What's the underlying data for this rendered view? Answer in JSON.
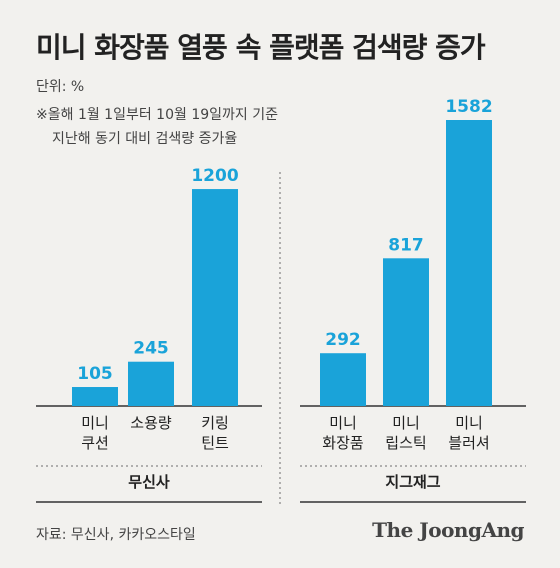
{
  "header": {
    "title": "미니 화장품 열풍 속 플랫폼 검색량 증가",
    "unit": "단위: %",
    "note_line1": "※올해 1월 1일부터 10월 19일까지 기준",
    "note_line2": "지난해 동기 대비 검색량 증가율"
  },
  "chart_data": {
    "type": "bar",
    "groups": [
      {
        "name": "무신사",
        "categories": [
          [
            "미니",
            "쿠션"
          ],
          [
            "소용량"
          ],
          [
            "키링",
            "틴트"
          ]
        ],
        "values": [
          105,
          245,
          1200
        ]
      },
      {
        "name": "지그재그",
        "categories": [
          [
            "미니",
            "화장품"
          ],
          [
            "미니",
            "립스틱"
          ],
          [
            "미니",
            "블러셔"
          ]
        ],
        "values": [
          292,
          817,
          1582
        ]
      }
    ],
    "ylim": [
      0,
      1582
    ],
    "grid": false,
    "bar_color": "#1aa3d9"
  },
  "footer": {
    "source": "자료: 무신사, 카카오스타일",
    "brand": "The JoongAng"
  }
}
